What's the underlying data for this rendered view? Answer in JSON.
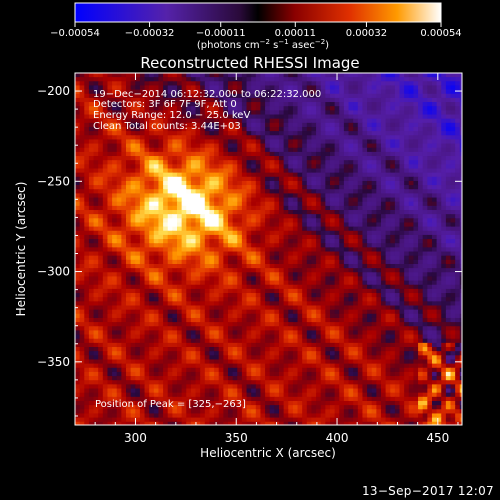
{
  "chart_data": {
    "type": "heatmap",
    "title": "Reconstructed RHESSI Image",
    "xlabel": "Heliocentric X (arcsec)",
    "ylabel": "Heliocentric Y (arcsec)",
    "xlim": [
      270,
      462
    ],
    "ylim": [
      -385,
      -190
    ],
    "x_ticks": [
      "300",
      "350",
      "400",
      "450"
    ],
    "x_tick_values": [
      300,
      350,
      400,
      450
    ],
    "y_ticks": [
      "−200",
      "−250",
      "−300",
      "−350"
    ],
    "y_tick_values": [
      -200,
      -250,
      -300,
      -350
    ],
    "colorbar": {
      "ticks": [
        "−0.00054",
        "−0.00032",
        "−0.00011",
        "0.00011",
        "0.00032",
        "0.00054"
      ],
      "tick_values": [
        -0.00054,
        -0.00032,
        -0.00011,
        0.00011,
        0.00032,
        0.00054
      ],
      "range": [
        -0.00054,
        0.00054
      ],
      "units_pre": "(photons cm",
      "units_exp1": "−2",
      "units_mid": " s",
      "units_exp2": "−1",
      "units_post": " asec",
      "units_exp3": "−2",
      "units_end": ")"
    },
    "annotations": [
      "19−Dec−2014 06:12:32.000 to 06:22:32.000",
      "Detectors: 3F 6F 7F 9F, Att 0",
      "Energy Range: 12.0 − 25.0 keV",
      "Clean    Total counts: 3.44E+03"
    ],
    "peak_label": "Position of Peak = [325,−263]",
    "peak": [
      325,
      -263
    ],
    "grid": false
  },
  "footer": {
    "date": "13−Sep−2017 12:07"
  }
}
